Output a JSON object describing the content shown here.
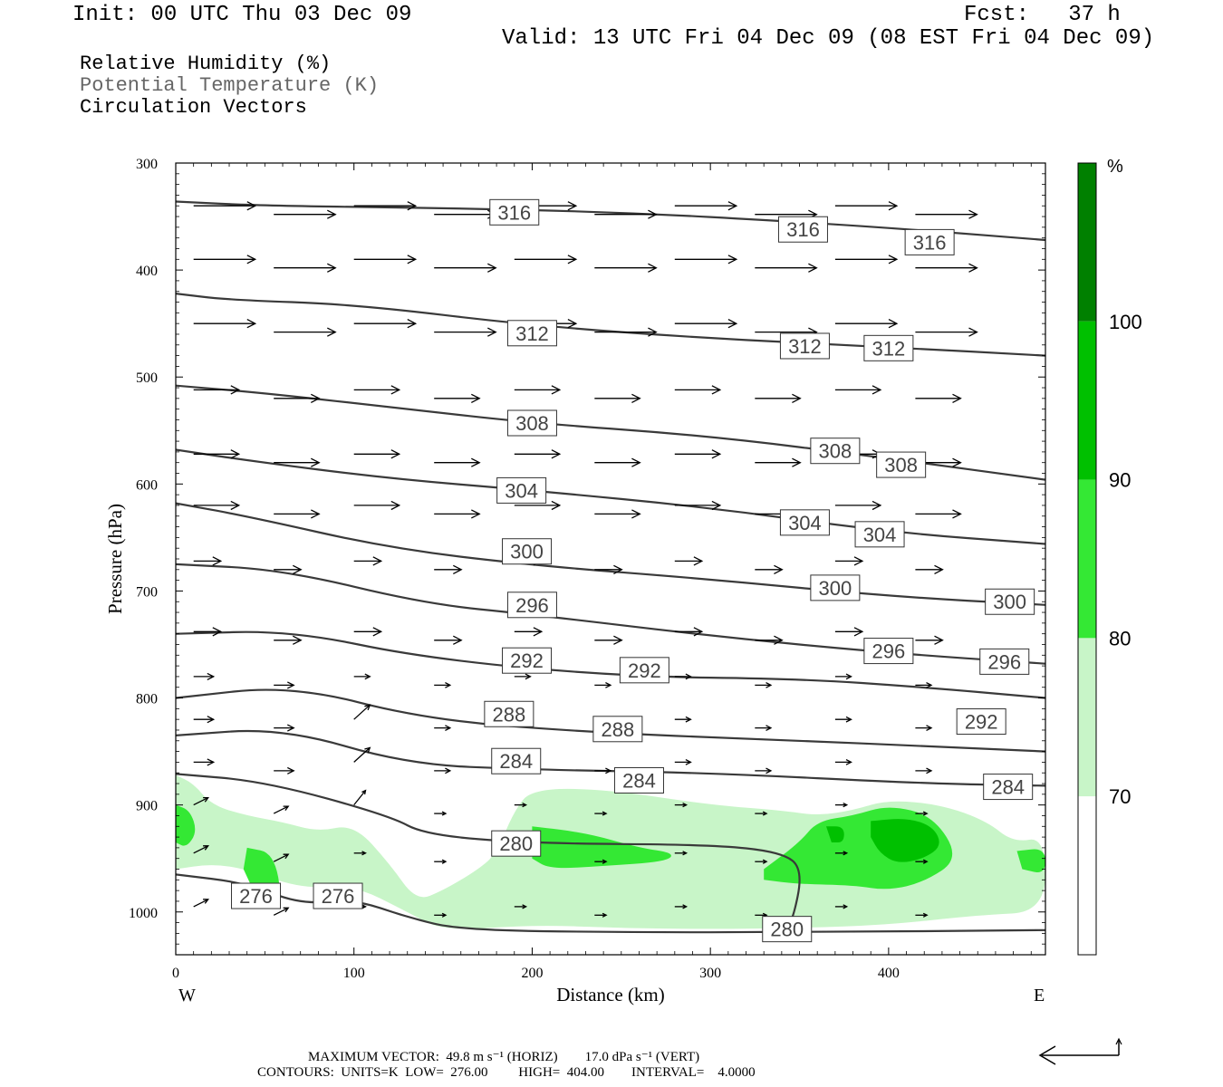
{
  "header": {
    "init": "Init: 00 UTC Thu 03 Dec 09",
    "fcst": "Fcst:   37 h",
    "valid": "Valid: 13 UTC Fri 04 Dec 09 (08 EST Fri 04 Dec 09)"
  },
  "legend_lines": {
    "rh": "Relative Humidity (%)",
    "theta": "Potential Temperature (K)",
    "vectors": "Circulation Vectors"
  },
  "footer": {
    "line1": "MAXIMUM VECTOR:  49.8 m s⁻¹ (HORIZ)        17.0 dPa s⁻¹ (VERT)",
    "line2": "CONTOURS:  UNITS=K  LOW=  276.00         HIGH=  404.00        INTERVAL=    4.0000"
  },
  "colors": {
    "rh70": "#c8f5c8",
    "rh80": "#34e834",
    "rh90": "#00c000",
    "rh100": "#008000",
    "contour": "#3a3a3a",
    "vector": "#000000"
  },
  "chart_data": {
    "type": "cross-section",
    "xlabel": "Distance (km)",
    "ylabel": "Pressure (hPa)",
    "xlim": [
      0,
      488
    ],
    "ylim": [
      1040,
      300
    ],
    "x_ticks": [
      "0",
      "100",
      "200",
      "300",
      "400"
    ],
    "y_ticks": [
      "300",
      "400",
      "500",
      "600",
      "700",
      "800",
      "900",
      "1000"
    ],
    "x_end_labels": {
      "left": "W",
      "right": "E"
    },
    "colorbar": {
      "unit": "%",
      "levels": [
        "70",
        "80",
        "90",
        "100"
      ]
    },
    "isentropes": [
      {
        "theta": 316,
        "points": [
          [
            0,
            336
          ],
          [
            50,
            340
          ],
          [
            150,
            342
          ],
          [
            250,
            346
          ],
          [
            350,
            355
          ],
          [
            420,
            363
          ],
          [
            488,
            372
          ]
        ],
        "labels": [
          [
            190,
            346
          ],
          [
            352,
            362
          ],
          [
            423,
            374
          ]
        ]
      },
      {
        "theta": 312,
        "points": [
          [
            0,
            422
          ],
          [
            30,
            428
          ],
          [
            100,
            432
          ],
          [
            200,
            452
          ],
          [
            300,
            464
          ],
          [
            400,
            472
          ],
          [
            488,
            480
          ]
        ],
        "labels": [
          [
            200,
            459
          ],
          [
            353,
            471
          ],
          [
            400,
            473
          ]
        ]
      },
      {
        "theta": 308,
        "points": [
          [
            0,
            508
          ],
          [
            50,
            515
          ],
          [
            130,
            530
          ],
          [
            200,
            543
          ],
          [
            300,
            555
          ],
          [
            400,
            576
          ],
          [
            488,
            596
          ]
        ],
        "labels": [
          [
            200,
            543
          ],
          [
            370,
            569
          ],
          [
            407,
            582
          ]
        ]
      },
      {
        "theta": 304,
        "points": [
          [
            0,
            568
          ],
          [
            40,
            578
          ],
          [
            120,
            595
          ],
          [
            200,
            606
          ],
          [
            300,
            622
          ],
          [
            400,
            645
          ],
          [
            488,
            656
          ]
        ],
        "labels": [
          [
            194,
            606
          ],
          [
            353,
            636
          ],
          [
            395,
            647
          ]
        ]
      },
      {
        "theta": 300,
        "points": [
          [
            0,
            618
          ],
          [
            40,
            630
          ],
          [
            120,
            660
          ],
          [
            200,
            676
          ],
          [
            300,
            689
          ],
          [
            400,
            705
          ],
          [
            488,
            713
          ]
        ],
        "labels": [
          [
            197,
            663
          ],
          [
            370,
            697
          ],
          [
            468,
            710
          ]
        ]
      },
      {
        "theta": 296,
        "points": [
          [
            0,
            675
          ],
          [
            60,
            680
          ],
          [
            140,
            712
          ],
          [
            200,
            722
          ],
          [
            300,
            742
          ],
          [
            400,
            758
          ],
          [
            488,
            768
          ]
        ],
        "labels": [
          [
            200,
            713
          ],
          [
            400,
            756
          ],
          [
            465,
            766
          ]
        ]
      },
      {
        "theta": 292,
        "points": [
          [
            0,
            740
          ],
          [
            65,
            737
          ],
          [
            140,
            763
          ],
          [
            250,
            780
          ],
          [
            350,
            782
          ],
          [
            420,
            790
          ],
          [
            488,
            800
          ]
        ],
        "labels": [
          [
            197,
            765
          ],
          [
            263,
            774
          ],
          [
            452,
            822
          ]
        ]
      },
      {
        "theta": 288,
        "points": [
          [
            0,
            800
          ],
          [
            65,
            788
          ],
          [
            140,
            820
          ],
          [
            230,
            832
          ],
          [
            350,
            840
          ],
          [
            420,
            845
          ],
          [
            488,
            850
          ]
        ],
        "labels": [
          [
            187,
            815
          ],
          [
            248,
            829
          ]
        ]
      },
      {
        "theta": 284,
        "points": [
          [
            0,
            835
          ],
          [
            60,
            828
          ],
          [
            130,
            862
          ],
          [
            200,
            867
          ],
          [
            300,
            870
          ],
          [
            420,
            880
          ],
          [
            488,
            882
          ]
        ],
        "labels": [
          [
            191,
            859
          ],
          [
            260,
            877
          ],
          [
            467,
            883
          ]
        ]
      },
      {
        "theta": 280,
        "points": [
          [
            0,
            871
          ],
          [
            50,
            878
          ],
          [
            120,
            910
          ],
          [
            140,
            928
          ],
          [
            200,
            936
          ],
          [
            300,
            937
          ],
          [
            340,
            944
          ],
          [
            352,
            960
          ],
          [
            346,
            1010
          ],
          [
            340,
            1018
          ]
        ],
        "labels": [
          [
            191,
            936
          ],
          [
            343,
            1016
          ]
        ]
      },
      {
        "theta": 276,
        "points": [
          [
            0,
            965
          ],
          [
            40,
            973
          ],
          [
            70,
            993
          ],
          [
            100,
            988
          ],
          [
            130,
            1005
          ],
          [
            160,
            1017
          ],
          [
            250,
            1019
          ],
          [
            350,
            1019
          ],
          [
            488,
            1017
          ]
        ],
        "labels": [
          [
            45,
            985
          ],
          [
            91,
            985
          ]
        ]
      }
    ],
    "rh_regions": [
      {
        "level": 70,
        "points": [
          [
            0,
            872
          ],
          [
            10,
            880
          ],
          [
            20,
            900
          ],
          [
            40,
            910
          ],
          [
            60,
            916
          ],
          [
            80,
            925
          ],
          [
            100,
            918
          ],
          [
            120,
            955
          ],
          [
            135,
            990
          ],
          [
            150,
            980
          ],
          [
            170,
            960
          ],
          [
            180,
            945
          ],
          [
            190,
            905
          ],
          [
            200,
            885
          ],
          [
            240,
            885
          ],
          [
            300,
            900
          ],
          [
            340,
            905
          ],
          [
            360,
            910
          ],
          [
            380,
            905
          ],
          [
            400,
            895
          ],
          [
            430,
            900
          ],
          [
            455,
            915
          ],
          [
            470,
            935
          ],
          [
            488,
            930
          ],
          [
            488,
            1000
          ],
          [
            450,
            1003
          ],
          [
            400,
            1012
          ],
          [
            350,
            1015
          ],
          [
            300,
            1016
          ],
          [
            250,
            1015
          ],
          [
            200,
            1012
          ],
          [
            150,
            1018
          ],
          [
            130,
            1000
          ],
          [
            100,
            975
          ],
          [
            70,
            978
          ],
          [
            40,
            960
          ],
          [
            20,
            955
          ],
          [
            0,
            960
          ]
        ]
      },
      {
        "level": 80,
        "points": [
          [
            0,
            900
          ],
          [
            8,
            905
          ],
          [
            12,
            925
          ],
          [
            6,
            940
          ],
          [
            0,
            935
          ]
        ]
      },
      {
        "level": 80,
        "points": [
          [
            40,
            940
          ],
          [
            55,
            945
          ],
          [
            60,
            990
          ],
          [
            45,
            985
          ],
          [
            38,
            960
          ]
        ]
      },
      {
        "level": 80,
        "points": [
          [
            200,
            920
          ],
          [
            230,
            926
          ],
          [
            260,
            940
          ],
          [
            280,
            945
          ],
          [
            275,
            953
          ],
          [
            240,
            957
          ],
          [
            210,
            960
          ],
          [
            200,
            950
          ]
        ]
      },
      {
        "level": 80,
        "points": [
          [
            330,
            960
          ],
          [
            350,
            935
          ],
          [
            360,
            915
          ],
          [
            380,
            910
          ],
          [
            400,
            900
          ],
          [
            425,
            910
          ],
          [
            440,
            950
          ],
          [
            420,
            972
          ],
          [
            400,
            980
          ],
          [
            380,
            975
          ],
          [
            350,
            974
          ],
          [
            330,
            970
          ]
        ]
      },
      {
        "level": 80,
        "points": [
          [
            472,
            943
          ],
          [
            488,
            940
          ],
          [
            488,
            965
          ],
          [
            475,
            960
          ]
        ]
      },
      {
        "level": 90,
        "points": [
          [
            390,
            915
          ],
          [
            410,
            912
          ],
          [
            425,
            920
          ],
          [
            430,
            938
          ],
          [
            420,
            950
          ],
          [
            405,
            955
          ],
          [
            395,
            945
          ],
          [
            390,
            930
          ]
        ]
      },
      {
        "level": 90,
        "points": [
          [
            365,
            920
          ],
          [
            375,
            920
          ],
          [
            375,
            935
          ],
          [
            368,
            935
          ]
        ]
      }
    ],
    "vectors_note": "wind arrows at grid points, mostly westerly"
  }
}
